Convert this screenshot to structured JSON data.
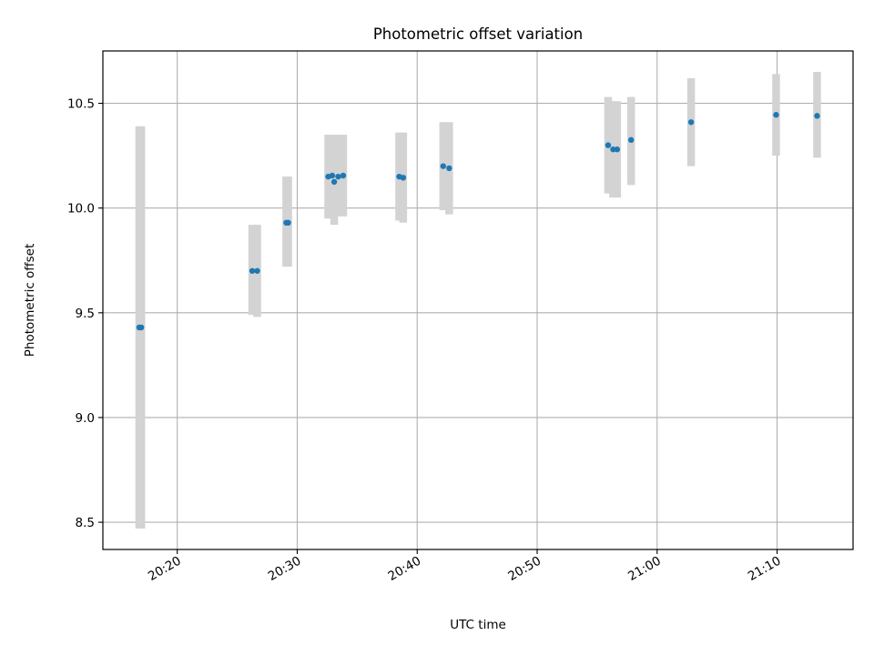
{
  "chart_data": {
    "type": "scatter",
    "title": "Photometric offset variation",
    "xlabel": "UTC time",
    "ylabel": "Photometric offset",
    "grid": true,
    "colors": {
      "points": "#1f77b4",
      "errorbars": "#d3d3d3",
      "grid": "#b0b0b0",
      "axes": "#000000"
    },
    "xlim": [
      "20:13:48",
      "21:16:20"
    ],
    "ylim": [
      8.37,
      10.75
    ],
    "x_ticks": [
      "20:20",
      "20:30",
      "20:40",
      "20:50",
      "21:00",
      "21:10"
    ],
    "y_ticks": [
      "8.5",
      "9.0",
      "9.5",
      "10.0",
      "10.5"
    ],
    "series": [
      {
        "points": [
          {
            "x": "20:16:50",
            "y": 9.43,
            "ylow": 8.47,
            "yhigh": 10.39
          },
          {
            "x": "20:17:00",
            "y": 9.43,
            "ylow": 8.47,
            "yhigh": 10.39
          },
          {
            "x": "20:26:15",
            "y": 9.7,
            "ylow": 9.49,
            "yhigh": 9.92
          },
          {
            "x": "20:26:40",
            "y": 9.7,
            "ylow": 9.48,
            "yhigh": 9.92
          },
          {
            "x": "20:29:05",
            "y": 9.93,
            "ylow": 9.72,
            "yhigh": 10.15
          },
          {
            "x": "20:29:15",
            "y": 9.93,
            "ylow": 9.72,
            "yhigh": 10.15
          },
          {
            "x": "20:32:35",
            "y": 10.15,
            "ylow": 9.95,
            "yhigh": 10.35
          },
          {
            "x": "20:32:55",
            "y": 10.155,
            "ylow": 9.96,
            "yhigh": 10.35
          },
          {
            "x": "20:33:05",
            "y": 10.125,
            "ylow": 9.92,
            "yhigh": 10.33
          },
          {
            "x": "20:33:25",
            "y": 10.15,
            "ylow": 9.96,
            "yhigh": 10.35
          },
          {
            "x": "20:33:50",
            "y": 10.155,
            "ylow": 9.96,
            "yhigh": 10.35
          },
          {
            "x": "20:38:30",
            "y": 10.15,
            "ylow": 9.94,
            "yhigh": 10.36
          },
          {
            "x": "20:38:50",
            "y": 10.145,
            "ylow": 9.93,
            "yhigh": 10.36
          },
          {
            "x": "20:42:10",
            "y": 10.2,
            "ylow": 9.99,
            "yhigh": 10.41
          },
          {
            "x": "20:42:40",
            "y": 10.19,
            "ylow": 9.97,
            "yhigh": 10.41
          },
          {
            "x": "20:55:55",
            "y": 10.3,
            "ylow": 10.07,
            "yhigh": 10.53
          },
          {
            "x": "20:56:20",
            "y": 10.28,
            "ylow": 10.05,
            "yhigh": 10.51
          },
          {
            "x": "20:56:40",
            "y": 10.28,
            "ylow": 10.05,
            "yhigh": 10.51
          },
          {
            "x": "20:57:50",
            "y": 10.325,
            "ylow": 10.11,
            "yhigh": 10.53
          },
          {
            "x": "21:02:50",
            "y": 10.41,
            "ylow": 10.2,
            "yhigh": 10.62
          },
          {
            "x": "21:09:55",
            "y": 10.445,
            "ylow": 10.25,
            "yhigh": 10.64
          },
          {
            "x": "21:13:20",
            "y": 10.44,
            "ylow": 10.24,
            "yhigh": 10.65
          }
        ]
      }
    ]
  }
}
